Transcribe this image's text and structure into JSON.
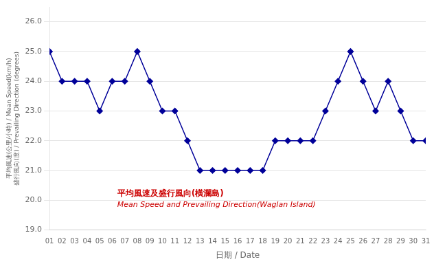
{
  "chart_data": {
    "type": "line",
    "xlabel": "日期 / Date",
    "ylabel": "平均風速(公里/小時) / Mean Speed(km/h)\n盛行風向(度) / Prevailing Direction (degrees)",
    "annotations": [
      "平均風速及盛行風向(橫瀾島)",
      "Mean Speed and Prevailing Direction(Waglan Island)"
    ],
    "categories": [
      "01",
      "02",
      "03",
      "04",
      "05",
      "06",
      "07",
      "08",
      "09",
      "10",
      "11",
      "12",
      "13",
      "14",
      "15",
      "16",
      "17",
      "18",
      "19",
      "20",
      "21",
      "22",
      "23",
      "24",
      "25",
      "26",
      "27",
      "28",
      "29",
      "30",
      "31"
    ],
    "values": [
      25.0,
      24.0,
      24.0,
      24.0,
      23.0,
      24.0,
      24.0,
      25.0,
      24.0,
      23.0,
      23.0,
      22.0,
      21.0,
      21.0,
      21.0,
      21.0,
      21.0,
      21.0,
      22.0,
      22.0,
      22.0,
      22.0,
      23.0,
      24.0,
      25.0,
      24.0,
      23.0,
      24.0,
      23.0,
      22.0,
      22.0
    ],
    "color": "#000099",
    "marker": "diamond",
    "ylim": [
      19.0,
      26.5
    ],
    "yticks": [
      {
        "value": 19.0,
        "label": "19.0"
      },
      {
        "value": 20.0,
        "label": "20.0"
      },
      {
        "value": 21.0,
        "label": "21.0"
      },
      {
        "value": 22.0,
        "label": "22.0"
      },
      {
        "value": 23.0,
        "label": "23.0"
      },
      {
        "value": 24.0,
        "label": "24.0"
      },
      {
        "value": 25.0,
        "label": "25.0"
      },
      {
        "value": 26.0,
        "label": "26.0"
      }
    ],
    "grid": true
  }
}
